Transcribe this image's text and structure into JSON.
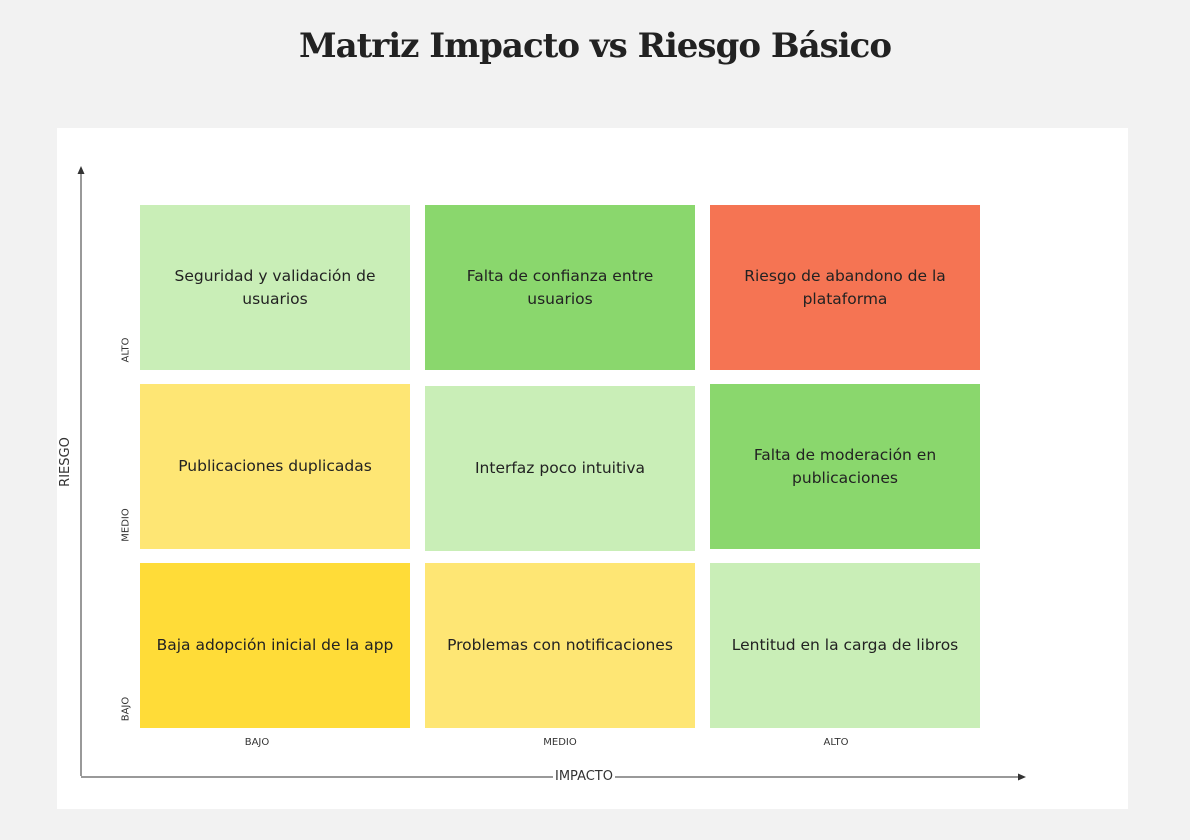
{
  "title": "Matriz Impacto vs Riesgo Básico",
  "axes": {
    "y_label": "RIESGO",
    "x_label": "IMPACTO",
    "y_ticks": [
      "ALTO",
      "MEDIO",
      "BAJO"
    ],
    "x_ticks": [
      "BAJO",
      "MEDIO",
      "ALTO"
    ]
  },
  "colors": {
    "light_green": "#c9eeb7",
    "green": "#8ad76d",
    "orange": "#f57453",
    "light_yellow": "#fee674",
    "yellow": "#ffdc38"
  },
  "cells": [
    {
      "row": 0,
      "col": 0,
      "text": "Seguridad y validación de usuarios",
      "color": "#c9eeb7"
    },
    {
      "row": 0,
      "col": 1,
      "text": "Falta de confianza entre usuarios",
      "color": "#8ad76d"
    },
    {
      "row": 0,
      "col": 2,
      "text": "Riesgo de abandono de la plataforma",
      "color": "#f57453"
    },
    {
      "row": 1,
      "col": 0,
      "text": "Publicaciones duplicadas",
      "color": "#fee674"
    },
    {
      "row": 1,
      "col": 1,
      "text": "Interfaz poco intuitiva",
      "color": "#c9eeb7"
    },
    {
      "row": 1,
      "col": 2,
      "text": "Falta de moderación en publicaciones",
      "color": "#8ad76d"
    },
    {
      "row": 2,
      "col": 0,
      "text": "Baja adopción inicial de la app",
      "color": "#ffdc38"
    },
    {
      "row": 2,
      "col": 1,
      "text": "Problemas con notificaciones",
      "color": "#fee674"
    },
    {
      "row": 2,
      "col": 2,
      "text": "Lentitud en la carga de libros",
      "color": "#c9eeb7"
    }
  ]
}
